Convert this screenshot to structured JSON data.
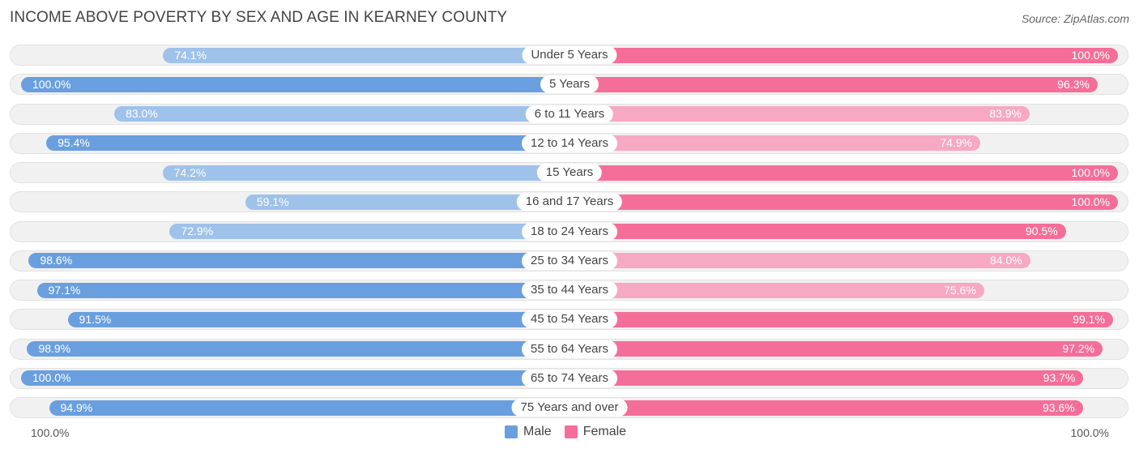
{
  "title": "INCOME ABOVE POVERTY BY SEX AND AGE IN KEARNEY COUNTY",
  "source": "Source: ZipAtlas.com",
  "colors": {
    "male_strong": "#6a9fdf",
    "male_light": "#9ec2ea",
    "female_strong": "#f46e99",
    "female_light": "#f7a8c2"
  },
  "chart_data": {
    "type": "bar",
    "orientation": "horizontal-diverging",
    "title": "INCOME ABOVE POVERTY BY SEX AND AGE IN KEARNEY COUNTY",
    "categories": [
      "Under 5 Years",
      "5 Years",
      "6 to 11 Years",
      "12 to 14 Years",
      "15 Years",
      "16 and 17 Years",
      "18 to 24 Years",
      "25 to 34 Years",
      "35 to 44 Years",
      "45 to 54 Years",
      "55 to 64 Years",
      "65 to 74 Years",
      "75 Years and over"
    ],
    "series": [
      {
        "name": "Male",
        "values": [
          74.1,
          100.0,
          83.0,
          95.4,
          74.2,
          59.1,
          72.9,
          98.6,
          97.1,
          91.5,
          98.9,
          100.0,
          94.9
        ],
        "labels": [
          "74.1%",
          "100.0%",
          "83.0%",
          "95.4%",
          "74.2%",
          "59.1%",
          "72.9%",
          "98.6%",
          "97.1%",
          "91.5%",
          "98.9%",
          "100.0%",
          "94.9%"
        ]
      },
      {
        "name": "Female",
        "values": [
          100.0,
          96.3,
          83.9,
          74.9,
          100.0,
          100.0,
          90.5,
          84.0,
          75.6,
          99.1,
          97.2,
          93.7,
          93.6
        ],
        "labels": [
          "100.0%",
          "96.3%",
          "83.9%",
          "74.9%",
          "100.0%",
          "100.0%",
          "90.5%",
          "84.0%",
          "75.6%",
          "99.1%",
          "97.2%",
          "93.7%",
          "93.6%"
        ]
      }
    ],
    "xlim": [
      0,
      100
    ],
    "axis_left_label": "100.0%",
    "axis_right_label": "100.0%",
    "legend": [
      "Male",
      "Female"
    ],
    "legend_position": "bottom-center"
  }
}
